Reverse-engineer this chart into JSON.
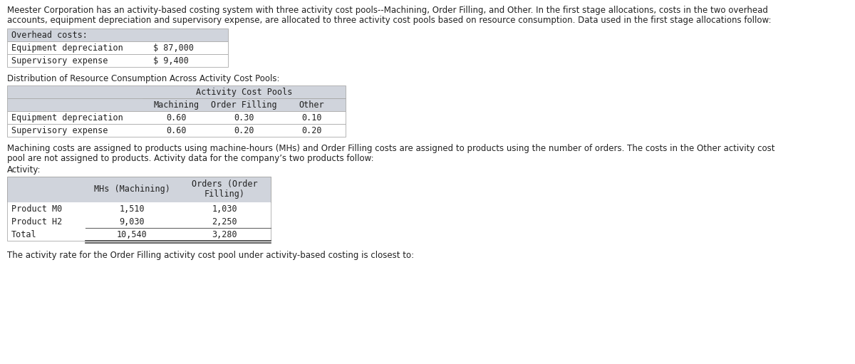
{
  "intro_line1": "Meester Corporation has an activity-based costing system with three activity cost pools--Machining, Order Filling, and Other. In the first stage allocations, costs in the two overhead",
  "intro_line2": "accounts, equipment depreciation and supervisory expense, are allocated to three activity cost pools based on resource consumption. Data used in the first stage allocations follow:",
  "overhead_header": "Overhead costs:",
  "overhead_rows": [
    [
      "Equipment depreciation",
      "$ 87,000"
    ],
    [
      "Supervisory expense",
      "$ 9,400"
    ]
  ],
  "dist_label": "Distribution of Resource Consumption Across Activity Cost Pools:",
  "dist_header_top": "Activity Cost Pools",
  "dist_header_cols": [
    "Machining",
    "Order Filling",
    "Other"
  ],
  "dist_rows": [
    [
      "Equipment depreciation",
      "0.60",
      "0.30",
      "0.10"
    ],
    [
      "Supervisory expense",
      "0.60",
      "0.20",
      "0.20"
    ]
  ],
  "middle_line1": "Machining costs are assigned to products using machine-hours (MHs) and Order Filling costs are assigned to products using the number of orders. The costs in the Other activity cost",
  "middle_line2": "pool are not assigned to products. Activity data for the company’s two products follow:",
  "activity_label": "Activity:",
  "activity_header_col1": "MHs (Machining)",
  "activity_header_col2_line1": "Orders (Order",
  "activity_header_col2_line2": "Filling)",
  "activity_rows": [
    [
      "Product M0",
      "1,510",
      "1,030"
    ],
    [
      "Product H2",
      "9,030",
      "2,250"
    ],
    [
      "Total",
      "10,540",
      "3,280"
    ]
  ],
  "footer_text": "The activity rate for the Order Filling activity cost pool under activity-based costing is closest to:",
  "bg_color": "#ffffff",
  "table_header_bg": "#d0d4dc",
  "table_border_color": "#aaaaaa",
  "mono_font": "DejaVu Sans Mono",
  "sans_font": "DejaVu Sans",
  "font_size_body": 8.5,
  "font_size_mono": 8.5
}
